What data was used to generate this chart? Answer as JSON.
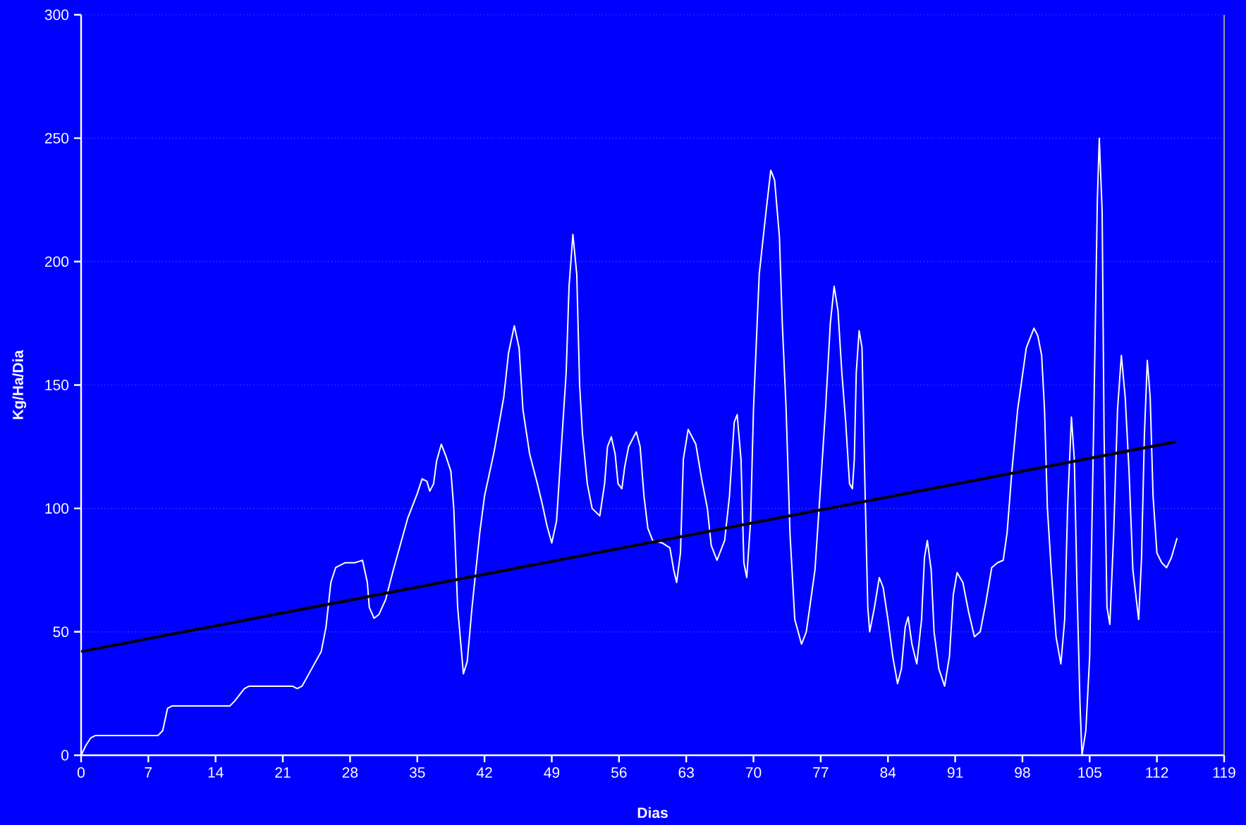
{
  "chart_data": {
    "type": "line",
    "xlabel": "Dias",
    "ylabel": "Kg/Ha/Dia",
    "xlim": [
      0,
      119
    ],
    "ylim": [
      0,
      300
    ],
    "xticks": [
      0,
      7,
      14,
      21,
      28,
      35,
      42,
      49,
      56,
      63,
      70,
      77,
      84,
      91,
      98,
      105,
      112,
      119
    ],
    "yticks": [
      0,
      50,
      100,
      150,
      200,
      250,
      300
    ],
    "grid": "y",
    "marker": "none",
    "line_style": "solid",
    "series": [
      {
        "color": "#ffffff",
        "x": [
          0,
          0.5,
          1,
          1.5,
          7.5,
          8,
          8.5,
          9,
          9.5,
          15,
          15.5,
          16,
          17,
          17.5,
          22,
          22.5,
          23,
          24,
          25,
          25.5,
          26,
          26.5,
          27.5,
          28.5,
          29.3,
          29.8,
          30,
          30.5,
          31,
          31.7,
          32.5,
          33,
          34,
          35,
          35.5,
          36,
          36.3,
          36.7,
          37,
          37.5,
          38,
          38.5,
          38.8,
          39.2,
          39.8,
          40.2,
          40.7,
          41.5,
          42,
          43,
          44,
          44.5,
          45.1,
          45.6,
          46,
          46.7,
          47.5,
          48,
          48.5,
          49,
          49.5,
          50,
          50.5,
          50.8,
          51.2,
          51.6,
          51.9,
          52.2,
          52.7,
          53.2,
          54,
          54.5,
          54.8,
          55.2,
          55.6,
          55.9,
          56.3,
          56.6,
          57,
          57.8,
          58.2,
          58.6,
          59,
          59.5,
          60.5,
          61.3,
          61.7,
          62,
          62.4,
          62.7,
          63.2,
          64,
          64.6,
          65.2,
          65.6,
          66.2,
          67,
          67.5,
          68,
          68.3,
          68.7,
          69,
          69.3,
          69.7,
          70,
          70.6,
          71.3,
          71.8,
          72.2,
          72.7,
          73,
          73.4,
          73.8,
          74.3,
          75,
          75.5,
          76.4,
          77,
          77.5,
          78,
          78.4,
          78.8,
          79.2,
          79.6,
          80,
          80.3,
          80.5,
          80.7,
          81,
          81.3,
          81.6,
          81.9,
          82.1,
          82.6,
          83.1,
          83.5,
          84,
          84.5,
          85,
          85.4,
          85.8,
          86.1,
          86.5,
          87,
          87.5,
          87.8,
          88.1,
          88.5,
          88.8,
          89.3,
          89.9,
          90.4,
          90.8,
          91.2,
          91.8,
          92.4,
          93,
          93.6,
          94.2,
          94.8,
          95.4,
          96,
          96.4,
          96.9,
          97.5,
          98.4,
          99.2,
          99.6,
          100,
          100.3,
          100.6,
          101,
          101.5,
          102,
          102.4,
          102.7,
          103.1,
          103.4,
          103.7,
          104,
          104.2,
          104.6,
          105,
          105.4,
          105.8,
          106,
          106.3,
          106.5,
          106.8,
          107.1,
          107.5,
          107.9,
          108.3,
          108.7,
          109.1,
          109.5,
          110.1,
          110.4,
          110.7,
          111,
          111.3,
          111.6,
          112,
          112.5,
          113,
          113.5,
          114.1
        ],
        "values": [
          0,
          4,
          7,
          8,
          8,
          8,
          10,
          19,
          20,
          20,
          20,
          22,
          27,
          28,
          28,
          27,
          28,
          35,
          42,
          52,
          70,
          76,
          78,
          78,
          79,
          70,
          60,
          55.5,
          57,
          63,
          75,
          82,
          96,
          106,
          112,
          111,
          107,
          110,
          119,
          126,
          121,
          115,
          100,
          60,
          33,
          38,
          60,
          90,
          105,
          123,
          145,
          163,
          174,
          165,
          140,
          122,
          110,
          102,
          93,
          86,
          95,
          125,
          155,
          190,
          211,
          195,
          150,
          130,
          110,
          100,
          97,
          110,
          125,
          129,
          122,
          110,
          108,
          117,
          125,
          131,
          125,
          105,
          92,
          87,
          86,
          84,
          75,
          70,
          82,
          120,
          132,
          126,
          112,
          100,
          85,
          79,
          87,
          105,
          135,
          138,
          120,
          78,
          72,
          95,
          140,
          195,
          220,
          237,
          233,
          210,
          175,
          140,
          90,
          55,
          45,
          50,
          75,
          110,
          140,
          175,
          190,
          180,
          155,
          135,
          110,
          108,
          120,
          155,
          172,
          165,
          110,
          60,
          50,
          60,
          72,
          68,
          55,
          40,
          29,
          35,
          52,
          56,
          45,
          37,
          55,
          80,
          87,
          75,
          50,
          35,
          28,
          40,
          65,
          74,
          70,
          58,
          48,
          50,
          62,
          76,
          78,
          79,
          90,
          115,
          140,
          165,
          173,
          170,
          162,
          140,
          100,
          75,
          48,
          37,
          55,
          100,
          137,
          120,
          65,
          20,
          0,
          10,
          40,
          130,
          225,
          250,
          220,
          130,
          60,
          53,
          90,
          140,
          162,
          145,
          115,
          75,
          55,
          80,
          130,
          160,
          145,
          105,
          82,
          78,
          76,
          80,
          88
        ]
      },
      {
        "type": "line",
        "color": "#000000",
        "x": [
          0,
          114
        ],
        "values": [
          42,
          127
        ]
      }
    ]
  }
}
